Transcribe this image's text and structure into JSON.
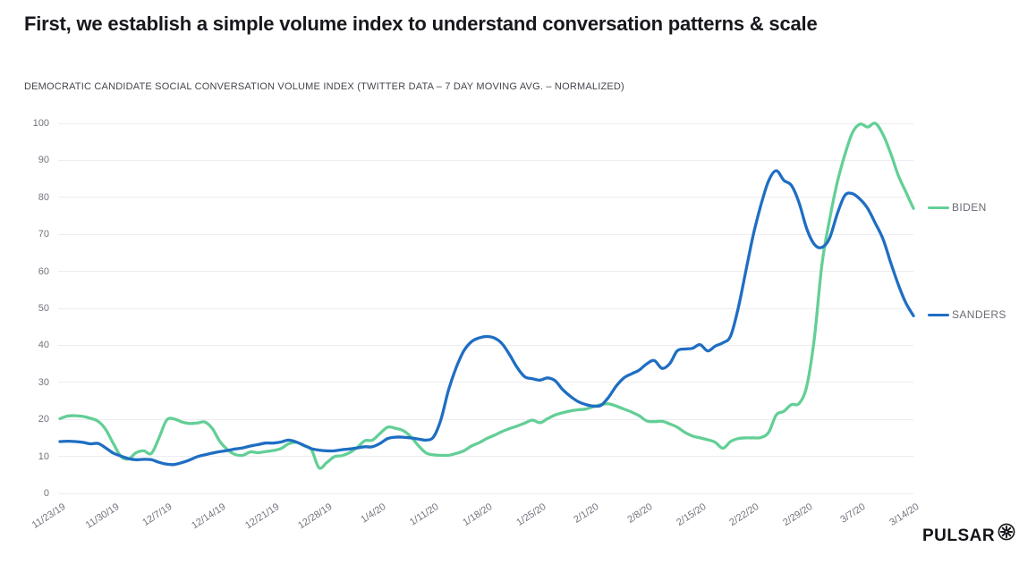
{
  "page": {
    "title": "First, we establish a simple volume index to understand conversation patterns & scale"
  },
  "brand": {
    "name": "PULSAR",
    "logo_icon": "starburst-circle-icon"
  },
  "chart_data": {
    "type": "line",
    "title": "DEMOCRATIC CANDIDATE SOCIAL CONVERSATION VOLUME INDEX (TWITTER DATA – 7 DAY MOVING AVG. – NORMALIZED)",
    "x_start": "11/23/19",
    "x_end": "3/14/20",
    "x_sampling": "daily",
    "x_tick_labels": [
      "11/23/19",
      "11/30/19",
      "12/7/19",
      "12/14/19",
      "12/21/19",
      "12/28/19",
      "1/4/20",
      "1/11/20",
      "1/18/20",
      "1/25/20",
      "2/1/20",
      "2/8/20",
      "2/15/20",
      "2/22/20",
      "2/29/20",
      "3/7/20",
      "3/14/20"
    ],
    "y_ticks": [
      0,
      10,
      20,
      30,
      40,
      50,
      60,
      70,
      80,
      90,
      100
    ],
    "ylim": [
      0,
      100
    ],
    "grid": "horizontal",
    "legend_position": "right-of-line-end",
    "axis_label_color": "#73737e",
    "grid_color": "#ededf1",
    "series": [
      {
        "name": "BIDEN",
        "color": "#63cf96",
        "values": [
          20.2,
          20.9,
          21.0,
          20.8,
          20.3,
          19.5,
          17.3,
          13.5,
          10.0,
          9.3,
          11.0,
          11.5,
          10.8,
          15.0,
          19.8,
          20.1,
          19.3,
          18.9,
          19.0,
          19.3,
          17.5,
          14.0,
          11.8,
          10.5,
          10.3,
          11.2,
          11.0,
          11.3,
          11.6,
          12.1,
          13.4,
          13.8,
          12.9,
          11.8,
          6.9,
          8.3,
          9.9,
          10.2,
          11.0,
          12.4,
          14.2,
          14.4,
          16.2,
          17.9,
          17.6,
          17.0,
          15.4,
          13.0,
          11.0,
          10.4,
          10.3,
          10.3,
          10.8,
          11.5,
          12.8,
          13.7,
          14.8,
          15.7,
          16.7,
          17.5,
          18.2,
          19.0,
          19.8,
          19.1,
          20.2,
          21.2,
          21.8,
          22.3,
          22.6,
          22.8,
          23.4,
          24.0,
          24.2,
          23.6,
          22.8,
          22.0,
          21.0,
          19.6,
          19.4,
          19.5,
          18.8,
          17.9,
          16.5,
          15.5,
          15.0,
          14.5,
          13.8,
          12.2,
          14.0,
          14.8,
          15.0,
          15.0,
          15.1,
          16.5,
          21.2,
          22.2,
          24.0,
          24.3,
          29.0,
          42.0,
          62.0,
          74.0,
          84.0,
          91.5,
          97.5,
          99.8,
          99.0,
          100.0,
          97.0,
          92.0,
          86.0,
          81.5,
          77.0
        ]
      },
      {
        "name": "SANDERS",
        "color": "#1f6ec3",
        "values": [
          14.0,
          14.1,
          14.0,
          13.8,
          13.4,
          13.5,
          12.3,
          10.9,
          10.1,
          9.4,
          9.1,
          9.2,
          9.1,
          8.4,
          7.9,
          7.8,
          8.3,
          9.0,
          9.9,
          10.4,
          10.9,
          11.3,
          11.6,
          12.0,
          12.3,
          12.8,
          13.2,
          13.6,
          13.6,
          13.9,
          14.4,
          13.9,
          13.0,
          12.1,
          11.7,
          11.5,
          11.5,
          11.8,
          12.0,
          12.3,
          12.6,
          12.6,
          13.5,
          14.8,
          15.2,
          15.2,
          15.0,
          14.7,
          14.4,
          15.2,
          20.0,
          28.0,
          34.0,
          38.5,
          41.0,
          42.0,
          42.4,
          42.0,
          40.5,
          37.5,
          34.0,
          31.5,
          31.0,
          30.6,
          31.2,
          30.4,
          28.0,
          26.2,
          24.8,
          24.0,
          23.6,
          23.8,
          26.0,
          29.0,
          31.2,
          32.3,
          33.3,
          35.0,
          35.9,
          33.8,
          35.0,
          38.5,
          39.0,
          39.2,
          40.2,
          38.5,
          39.8,
          40.7,
          42.5,
          50.0,
          60.0,
          70.0,
          78.0,
          84.5,
          87.2,
          84.6,
          83.2,
          78.5,
          71.5,
          67.3,
          66.5,
          69.0,
          75.5,
          80.5,
          81.0,
          79.5,
          77.0,
          73.0,
          68.8,
          62.5,
          56.5,
          51.5,
          48.0
        ]
      }
    ]
  }
}
